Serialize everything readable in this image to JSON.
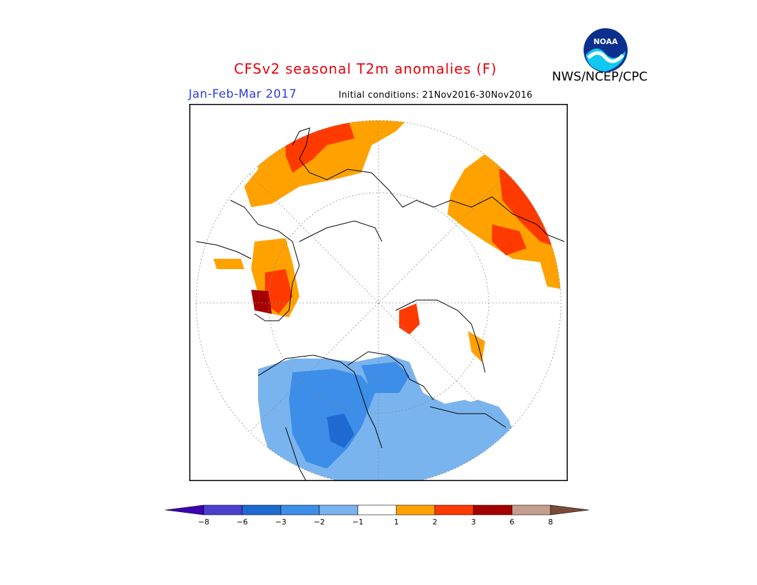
{
  "header": {
    "title": "CFSv2 seasonal T2m anomalies (F)",
    "agency": "NWS/NCEP/CPC",
    "logo_text": "NOAA",
    "period": "Jan-Feb-Mar 2017",
    "initial_conditions": "Initial conditions: 21Nov2016-30Nov2016"
  },
  "legend": {
    "ticks": [
      "-8",
      "-6",
      "-3",
      "-2",
      "-1",
      "1",
      "2",
      "3",
      "6",
      "8"
    ],
    "colors": [
      "#3d00b0",
      "#4b3fd0",
      "#1f6ad0",
      "#3c8ee8",
      "#7ab4ef",
      "#ffffff",
      "#ffa200",
      "#ff3a00",
      "#a50000",
      "#c59e8e",
      "#7a4a3a"
    ]
  },
  "map": {
    "projection": "north polar stereographic",
    "region_colors": {
      "cold_light": "#7ab4ef",
      "cold_mid": "#3c8ee8",
      "cold_dark": "#1f6ad0",
      "warm_light": "#ffa200",
      "warm_mid": "#ff3a00",
      "warm_dark": "#a50000"
    }
  }
}
